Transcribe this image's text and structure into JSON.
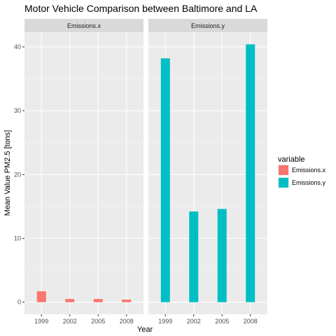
{
  "chart_data": {
    "type": "bar",
    "title": "Motor Vehicle Comparison between Baltimore and LA",
    "xlabel": "Year",
    "ylabel": "Mean Value PM2.5 [tons]",
    "ylim": [
      -1.9,
      42.3
    ],
    "y_ticks": [
      0,
      10,
      20,
      30,
      40
    ],
    "categories": [
      "1999",
      "2002",
      "2005",
      "2008"
    ],
    "facets": [
      {
        "strip": "Emissions.x",
        "series": "Emissions.x",
        "values": [
          1.7,
          0.5,
          0.5,
          0.4
        ]
      },
      {
        "strip": "Emissions.y",
        "series": "Emissions.y",
        "values": [
          38.2,
          14.2,
          14.6,
          40.4
        ]
      }
    ],
    "legend": {
      "title": "variable",
      "position": "right",
      "items": [
        {
          "label": "Emissions.x",
          "color": "#F8766D"
        },
        {
          "label": "Emissions.y",
          "color": "#00BFC4"
        }
      ]
    },
    "grid": true,
    "panel_background": "#EBEBEB",
    "strip_background": "#D9D9D9"
  }
}
